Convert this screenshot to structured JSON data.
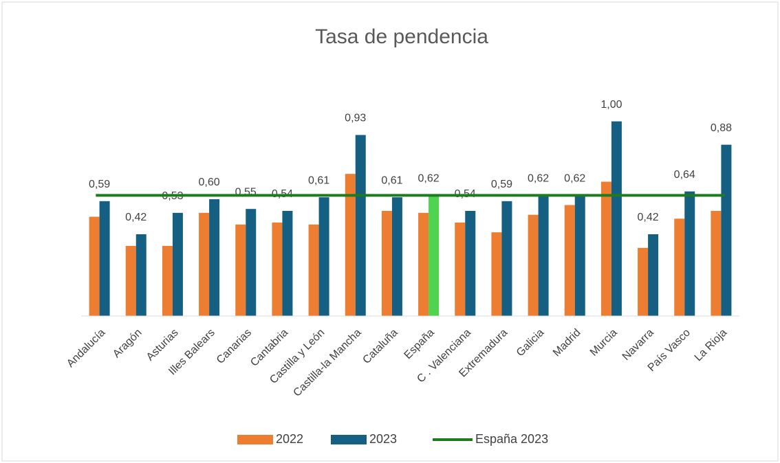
{
  "chart_data": {
    "type": "bar",
    "title": "Tasa de pendencia",
    "categories": [
      "Andalucía",
      "Aragón",
      "Asturias",
      "Illes Balears",
      "Canarias",
      "Cantabria",
      "Castilla y León",
      "Castilla-la Mancha",
      "Cataluña",
      "España",
      "C . Valenciana",
      "Extremadura",
      "Galicia",
      "Madrid",
      "Murcia",
      "Navarra",
      "País Vasco",
      "La Rioja"
    ],
    "series": [
      {
        "name": "2022",
        "color": "#ed7d31",
        "values": [
          0.51,
          0.36,
          0.36,
          0.53,
          0.47,
          0.48,
          0.47,
          0.73,
          0.54,
          0.53,
          0.48,
          0.43,
          0.52,
          0.57,
          0.69,
          0.35,
          0.5,
          0.54
        ]
      },
      {
        "name": "2023",
        "color": "#156082",
        "point_colors": [
          "#156082",
          "#156082",
          "#156082",
          "#156082",
          "#156082",
          "#156082",
          "#156082",
          "#156082",
          "#156082",
          "#4ed44e",
          "#156082",
          "#156082",
          "#156082",
          "#156082",
          "#156082",
          "#156082",
          "#156082",
          "#156082"
        ],
        "values": [
          0.59,
          0.42,
          0.53,
          0.6,
          0.55,
          0.54,
          0.61,
          0.93,
          0.61,
          0.62,
          0.54,
          0.59,
          0.62,
          0.62,
          1.0,
          0.42,
          0.64,
          0.88
        ],
        "value_labels": [
          "0,59",
          "0,42",
          "0,53",
          "0,60",
          "0,55",
          "0,54",
          "0,61",
          "0,93",
          "0,61",
          "0,62",
          "0,54",
          "0,59",
          "0,62",
          "0,62",
          "1,00",
          "0,42",
          "0,64",
          "0,88"
        ]
      }
    ],
    "reference_line": {
      "name": "España 2023",
      "value": 0.62,
      "color": "#1e7b1e"
    },
    "ylim": [
      0,
      1.2
    ]
  }
}
